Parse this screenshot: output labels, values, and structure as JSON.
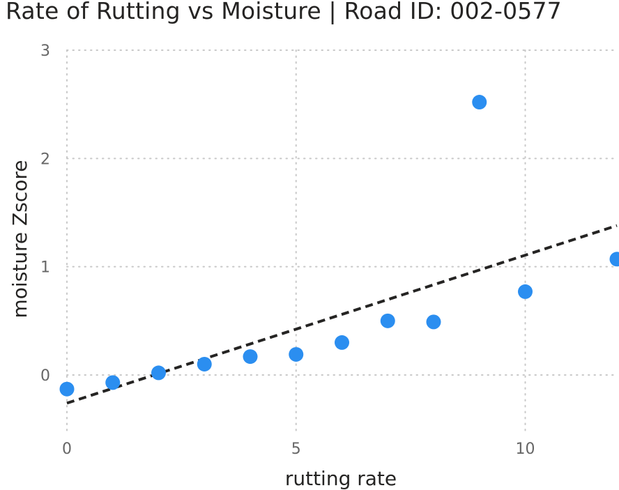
{
  "chart_data": {
    "type": "scatter",
    "title": "Rate of Rutting vs Moisture | Road ID: 002-0577",
    "xlabel": "rutting rate",
    "ylabel": "moisture Zscore",
    "xlim": [
      0,
      12
    ],
    "ylim": [
      -0.55,
      3
    ],
    "x_ticks": [
      0,
      5,
      10
    ],
    "y_ticks": [
      0,
      1,
      2,
      3
    ],
    "grid": true,
    "colors": {
      "points": "#2B8EF0",
      "trend": "#252423",
      "grid": "#c8c8c8"
    },
    "series": [
      {
        "x": [
          0,
          1,
          2,
          3,
          4,
          5,
          6,
          7,
          8,
          9,
          10,
          12
        ],
        "y": [
          -0.13,
          -0.07,
          0.02,
          0.1,
          0.17,
          0.19,
          0.3,
          0.5,
          0.49,
          2.52,
          0.77,
          1.07
        ]
      }
    ],
    "trendline": {
      "style": "dashed",
      "x": [
        0,
        12
      ],
      "y": [
        -0.26,
        1.38
      ]
    }
  }
}
